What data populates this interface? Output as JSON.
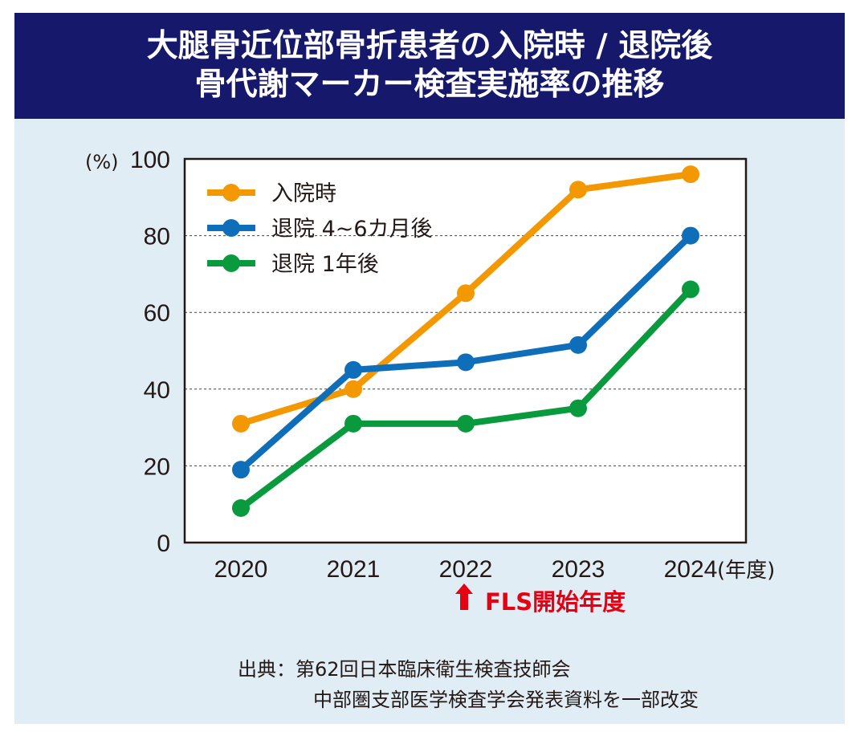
{
  "title_lines": [
    "大腿骨近位部骨折患者の入院時 / 退院後",
    "骨代謝マーカー検査実施率の推移"
  ],
  "chart_data": {
    "type": "line",
    "title": "大腿骨近位部骨折患者の入院時 / 退院後 骨代謝マーカー検査実施率の推移",
    "x": [
      "2020",
      "2021",
      "2022",
      "2023",
      "2024"
    ],
    "xlabel": "(年度)",
    "ylabel": "(%)",
    "ylim": [
      0,
      100
    ],
    "yticks": [
      0,
      20,
      40,
      60,
      80,
      100
    ],
    "grid": "horizontal dashed at 20, 40, 60, 80",
    "legend_position": "top-left",
    "series": [
      {
        "name": "入院時",
        "color": "#f39800",
        "values": [
          31,
          40,
          65,
          92,
          96
        ]
      },
      {
        "name": "退院 4~6カ月後",
        "color": "#0f6eb9",
        "values": [
          19,
          45,
          47,
          51.5,
          80
        ]
      },
      {
        "name": "退院 1年後",
        "color": "#0a9a3e",
        "values": [
          9,
          31,
          31,
          35,
          66
        ]
      }
    ],
    "annotation": {
      "text": "FLS開始年度",
      "at_x": "2022",
      "color": "#e60012"
    }
  },
  "source_lines": [
    "出典：第62回日本臨床衛生検査技師会",
    "中部圏支部医学検査学会発表資料を一部改変"
  ]
}
